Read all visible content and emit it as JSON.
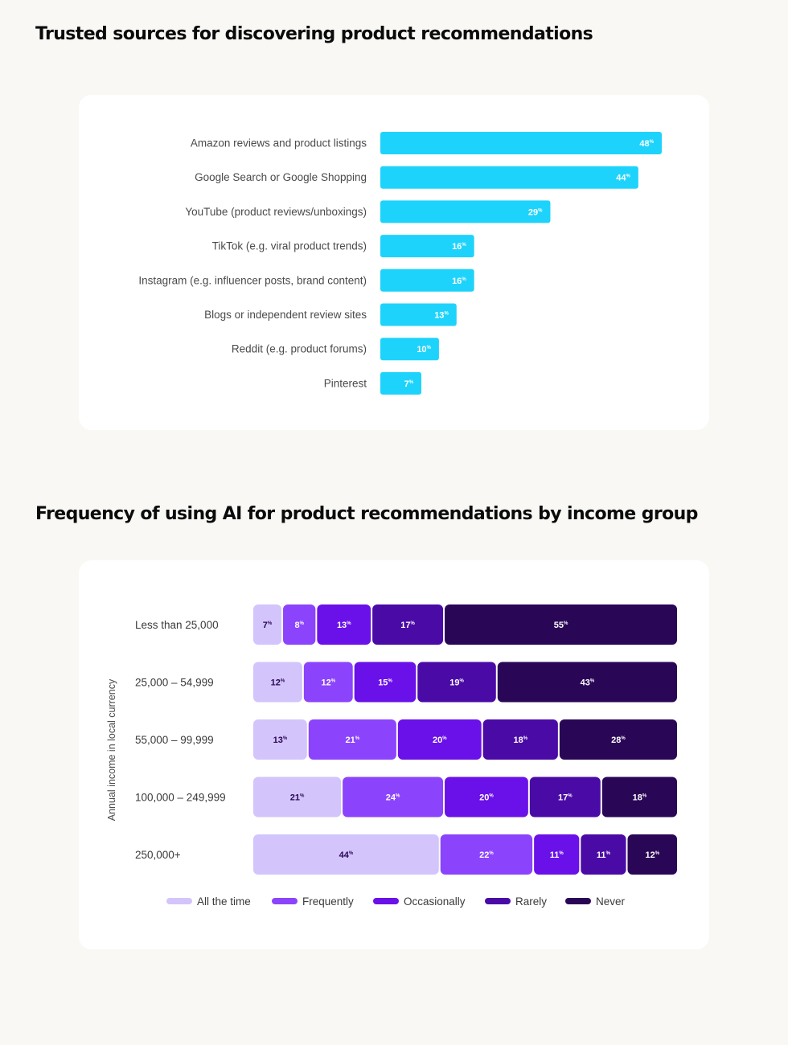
{
  "sections": [
    {
      "title": "Trusted sources for discovering product recommendations"
    },
    {
      "title": "Frequency of using AI for product recommendations by income group"
    }
  ],
  "chart_data": [
    {
      "type": "bar",
      "orientation": "horizontal",
      "title": "Trusted sources for discovering product recommendations",
      "categories": [
        "Amazon reviews and product listings",
        "Google Search or Google Shopping",
        "YouTube (product reviews/unboxings)",
        "TikTok (e.g. viral product trends)",
        "Instagram (e.g. influencer posts, brand content)",
        "Blogs or independent review sites",
        "Reddit (e.g. product forums)",
        "Pinterest"
      ],
      "values": [
        48,
        44,
        29,
        16,
        16,
        13,
        10,
        7
      ],
      "value_suffix": "%",
      "color": "#1ed3fb",
      "grid": false
    },
    {
      "type": "bar",
      "orientation": "horizontal",
      "stacked": true,
      "title": "Frequency of using AI for product recommendations by income group",
      "ylabel": "Annual income in local currency",
      "categories": [
        "Less than 25,000",
        "25,000 – 54,999",
        "55,000 – 99,999",
        "100,000 – 249,999",
        "250,000+"
      ],
      "series": [
        {
          "name": "All the time",
          "color": "#d3c5fb",
          "values": [
            7,
            12,
            13,
            21,
            44
          ]
        },
        {
          "name": "Frequently",
          "color": "#8b44fb",
          "values": [
            8,
            12,
            21,
            24,
            22
          ]
        },
        {
          "name": "Occasionally",
          "color": "#6a10e8",
          "values": [
            13,
            15,
            20,
            20,
            11
          ]
        },
        {
          "name": "Rarely",
          "color": "#4a0aa6",
          "values": [
            17,
            19,
            18,
            17,
            11
          ]
        },
        {
          "name": "Never",
          "color": "#2a0656",
          "values": [
            55,
            43,
            28,
            18,
            12
          ]
        }
      ],
      "value_suffix": "%",
      "legend_position": "bottom",
      "grid": false
    }
  ]
}
